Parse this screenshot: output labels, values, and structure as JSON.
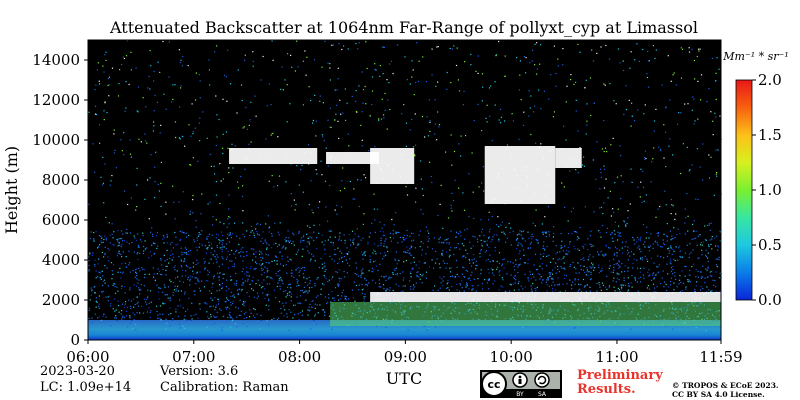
{
  "chart_data": {
    "type": "heatmap",
    "title": "Attenuated Backscatter at 1064nm Far-Range of pollyxt_cyp at Limassol",
    "xlabel": "UTC",
    "ylabel": "Height (m)",
    "x_ticks": [
      "06:00",
      "07:00",
      "08:00",
      "09:00",
      "10:00",
      "11:00",
      "11:59"
    ],
    "x_range": [
      "06:00",
      "11:59"
    ],
    "y_ticks": [
      0,
      2000,
      4000,
      6000,
      8000,
      10000,
      12000,
      14000
    ],
    "ylim": [
      0,
      15000
    ],
    "colorbar": {
      "unit_label": "Mm⁻¹ * sr⁻¹",
      "ticks": [
        "0.0",
        "0.5",
        "1.0",
        "1.5",
        "2.0"
      ],
      "range": [
        0,
        2.0
      ],
      "colormap": [
        "#0a24d8",
        "#0a7de8",
        "#1ec8e0",
        "#38e6a0",
        "#7af030",
        "#d8f020",
        "#fcc018",
        "#f86010",
        "#e81818"
      ]
    },
    "features": [
      {
        "type": "high cloud",
        "start": "07:20",
        "end": "08:10",
        "base_m": 8800,
        "top_m": 9600
      },
      {
        "type": "high cloud",
        "start": "08:15",
        "end": "08:45",
        "base_m": 8800,
        "top_m": 9400
      },
      {
        "type": "high cloud",
        "start": "08:40",
        "end": "09:05",
        "base_m": 7800,
        "top_m": 9600
      },
      {
        "type": "high cloud",
        "start": "09:45",
        "end": "10:25",
        "base_m": 6800,
        "top_m": 9700
      },
      {
        "type": "high cloud",
        "start": "10:25",
        "end": "10:40",
        "base_m": 8600,
        "top_m": 9600
      },
      {
        "type": "low cloud",
        "start": "08:40",
        "end": "11:59",
        "base_m": 1900,
        "top_m": 2400
      }
    ]
  },
  "footer": {
    "date": "2023-03-20",
    "version": "Version: 3.6",
    "lc": "LC: 1.09e+14",
    "calibration": "Calibration: Raman",
    "preliminary_line1": "Preliminary",
    "preliminary_line2": "Results.",
    "copyright_line1": "© TROPOS & ECoE 2023.",
    "copyright_line2": "CC BY SA 4.0 License.",
    "license_badge": [
      "cc",
      "BY",
      "SA"
    ]
  },
  "colors": {
    "preliminary": "#e8332b"
  }
}
